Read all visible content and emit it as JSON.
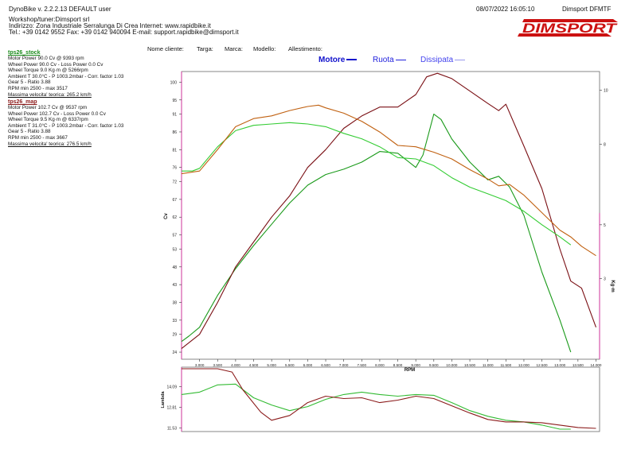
{
  "header": {
    "app_version": "DynoBike v. 2.2.2.13   DEFAULT user",
    "timestamp": "08/07/2022 16:05:10",
    "product": "Dimsport DFMTF",
    "workshop_line1": "Workshop/tuner:Dimsport srl",
    "workshop_line2": "Indirizzo: Zona Industriale Serralunga Di Crea Internet: www.rapidbike.it",
    "workshop_line3": "Tel.: +39 0142 9552 Fax: +39 0142 940094 E-mail: support.rapidbike@dimsport.it",
    "logo_text": "DIMSPORT"
  },
  "fields": {
    "client": "Nome cliente:",
    "plate": "Targa:",
    "brand": "Marca:",
    "model": "Modello:",
    "setup": "Allestimento:"
  },
  "legend": {
    "motore": "Motore",
    "ruota": "Ruota",
    "dissipata": "Dissipata"
  },
  "runs": [
    {
      "name": "tps26_stock",
      "color": "#1a8a1a",
      "lines": [
        "Motor Power 90.0 Cv  @ 9393 rpm",
        "Wheel Power 90.0 Cv  - Loss Power 0.0 Cv",
        "Wheel Torque 9.0 Kg·m  @ 5266rpm",
        "Ambient T 30.0°C - P 1003.2mbar - Corr. factor 1.03",
        "Gear 5 - Ratio 3.88",
        "RPM min 2500 - max 3517"
      ],
      "speed": "Massima velocita' teorica: 265.2 km/h"
    },
    {
      "name": "tps26_map",
      "color": "#8b1a1a",
      "lines": [
        "Motor Power 102.7 Cv  @ 9537 rpm",
        "Wheel Power 102.7 Cv  - Loss Power 0.0 Cv",
        "Wheel Torque 9.5 Kg·m  @ 6337rpm",
        "Ambient T 31.0°C - P 1003.2mbar - Corr. factor 1.03",
        "Gear 5 - Ratio 3.88",
        "RPM min 2500 - max 3667"
      ],
      "speed": "Massima velocita' teorica: 276.5 km/h"
    }
  ],
  "colors": {
    "stock_power": "#1a9a1a",
    "stock_torque": "#33cc33",
    "map_power": "#7a0f14",
    "map_torque": "#c06010",
    "legend_blue": "#1111cc",
    "axis_pink": "#cc3399"
  },
  "chart_data": [
    {
      "type": "line",
      "title": "",
      "xlabel": "RPM",
      "ylabel": "Cv",
      "y2label": "Kg·m",
      "xlim": [
        2500,
        14100
      ],
      "ylim": [
        22,
        103
      ],
      "y2lim": [
        0,
        10.7
      ],
      "x_ticks": [
        3000,
        3500,
        4000,
        4500,
        5000,
        5500,
        6000,
        6500,
        7000,
        7500,
        8000,
        8500,
        9000,
        9500,
        10000,
        10500,
        11000,
        11500,
        12000,
        12500,
        13000,
        13500,
        14000
      ],
      "x_tick_labels": [
        "3.000",
        "3.500",
        "4.000",
        "4.500",
        "5.000",
        "5.500",
        "6.000",
        "6.500",
        "7.000",
        "7.500",
        "8.000",
        "8.500",
        "9.000",
        "9.500",
        "10.000",
        "10.500",
        "11.000",
        "11.500",
        "12.000",
        "12.500",
        "13.000",
        "13.500",
        "14.000"
      ],
      "y_ticks": [
        24,
        29,
        33,
        38,
        43,
        48,
        53,
        57,
        62,
        67,
        72,
        76,
        81,
        86,
        91,
        95,
        100
      ],
      "y2_ticks": [
        3,
        5,
        8,
        10
      ],
      "grid": false,
      "series": [
        {
          "name": "tps26_stock",
          "quantity": "power",
          "axis": "left",
          "color": "#1a9a1a",
          "points": [
            [
              2500,
              27
            ],
            [
              2700,
              28.5
            ],
            [
              3000,
              31
            ],
            [
              3500,
              40
            ],
            [
              4000,
              47.5
            ],
            [
              4500,
              54
            ],
            [
              5000,
              60
            ],
            [
              5500,
              66
            ],
            [
              6000,
              71
            ],
            [
              6500,
              74
            ],
            [
              7000,
              75.5
            ],
            [
              7500,
              77.5
            ],
            [
              8000,
              80.5
            ],
            [
              8500,
              80
            ],
            [
              9000,
              76
            ],
            [
              9200,
              79.5
            ],
            [
              9500,
              91
            ],
            [
              9700,
              89.5
            ],
            [
              10000,
              84
            ],
            [
              10500,
              77.5
            ],
            [
              11000,
              72.5
            ],
            [
              11300,
              73.5
            ],
            [
              11600,
              70.5
            ],
            [
              12000,
              62.5
            ],
            [
              12500,
              46.5
            ],
            [
              13000,
              33
            ],
            [
              13300,
              24
            ]
          ]
        },
        {
          "name": "tps26_map",
          "quantity": "power",
          "axis": "left",
          "color": "#7a0f14",
          "points": [
            [
              2500,
              25
            ],
            [
              3000,
              29
            ],
            [
              3500,
              38
            ],
            [
              4000,
              48
            ],
            [
              4500,
              55
            ],
            [
              5000,
              62
            ],
            [
              5500,
              68
            ],
            [
              6000,
              76
            ],
            [
              6500,
              81
            ],
            [
              7000,
              87
            ],
            [
              7500,
              90.5
            ],
            [
              8000,
              93
            ],
            [
              8500,
              93
            ],
            [
              9000,
              96.5
            ],
            [
              9300,
              101.5
            ],
            [
              9600,
              102.5
            ],
            [
              10000,
              101
            ],
            [
              10500,
              97.5
            ],
            [
              11000,
              94
            ],
            [
              11300,
              92
            ],
            [
              11500,
              93.8
            ],
            [
              12000,
              82
            ],
            [
              12500,
              70
            ],
            [
              13000,
              53
            ],
            [
              13300,
              44
            ],
            [
              13600,
              42
            ],
            [
              14000,
              31
            ]
          ]
        },
        {
          "name": "tps26_stock",
          "quantity": "torque",
          "axis": "right",
          "color": "#33cc33",
          "points": [
            [
              2500,
              7.0
            ],
            [
              2800,
              7.0
            ],
            [
              3000,
              7.1
            ],
            [
              3500,
              7.9
            ],
            [
              4000,
              8.5
            ],
            [
              4500,
              8.7
            ],
            [
              5000,
              8.75
            ],
            [
              5500,
              8.8
            ],
            [
              6000,
              8.75
            ],
            [
              6500,
              8.65
            ],
            [
              7000,
              8.4
            ],
            [
              7500,
              8.2
            ],
            [
              8000,
              7.9
            ],
            [
              8500,
              7.5
            ],
            [
              9000,
              7.45
            ],
            [
              9500,
              7.2
            ],
            [
              10000,
              6.75
            ],
            [
              10500,
              6.4
            ],
            [
              11000,
              6.15
            ],
            [
              11500,
              5.9
            ],
            [
              12000,
              5.5
            ],
            [
              12500,
              5.0
            ],
            [
              13000,
              4.55
            ],
            [
              13300,
              4.25
            ]
          ]
        },
        {
          "name": "tps26_map",
          "quantity": "torque",
          "axis": "right",
          "color": "#c06010",
          "points": [
            [
              2500,
              6.9
            ],
            [
              3000,
              7.0
            ],
            [
              3500,
              7.8
            ],
            [
              4000,
              8.65
            ],
            [
              4500,
              8.95
            ],
            [
              5000,
              9.05
            ],
            [
              5500,
              9.25
            ],
            [
              6000,
              9.4
            ],
            [
              6300,
              9.45
            ],
            [
              6500,
              9.35
            ],
            [
              7000,
              9.15
            ],
            [
              7500,
              8.85
            ],
            [
              8000,
              8.45
            ],
            [
              8500,
              7.95
            ],
            [
              9000,
              7.9
            ],
            [
              9500,
              7.7
            ],
            [
              10000,
              7.45
            ],
            [
              10500,
              7.05
            ],
            [
              11000,
              6.7
            ],
            [
              11300,
              6.45
            ],
            [
              11600,
              6.5
            ],
            [
              12000,
              6.1
            ],
            [
              12500,
              5.45
            ],
            [
              13000,
              4.8
            ],
            [
              13300,
              4.55
            ],
            [
              13600,
              4.2
            ],
            [
              14000,
              3.85
            ]
          ]
        }
      ]
    },
    {
      "type": "line",
      "title": "",
      "ylabel": "Lambda",
      "xlim": [
        2500,
        14100
      ],
      "ylim": [
        11.3,
        15.3
      ],
      "y_ticks": [
        11.53,
        12.81,
        14.09
      ],
      "y_tick_labels": [
        "11.53",
        "12.81",
        "14.09"
      ],
      "grid": false,
      "series": [
        {
          "name": "tps26_stock",
          "quantity": "lambda",
          "color": "#33bb33",
          "points": [
            [
              2500,
              13.6
            ],
            [
              3000,
              13.75
            ],
            [
              3500,
              14.2
            ],
            [
              4000,
              14.25
            ],
            [
              4500,
              13.4
            ],
            [
              5000,
              12.95
            ],
            [
              5500,
              12.6
            ],
            [
              6000,
              12.85
            ],
            [
              6500,
              13.3
            ],
            [
              7000,
              13.6
            ],
            [
              7500,
              13.75
            ],
            [
              8000,
              13.6
            ],
            [
              8500,
              13.5
            ],
            [
              9000,
              13.6
            ],
            [
              9500,
              13.55
            ],
            [
              10000,
              13.1
            ],
            [
              10500,
              12.6
            ],
            [
              11000,
              12.25
            ],
            [
              11500,
              12.0
            ],
            [
              12000,
              11.9
            ],
            [
              12500,
              11.7
            ],
            [
              13000,
              11.45
            ],
            [
              13300,
              11.45
            ]
          ]
        },
        {
          "name": "tps26_map",
          "quantity": "lambda",
          "color": "#8b1a1a",
          "points": [
            [
              2500,
              15.2
            ],
            [
              3500,
              15.2
            ],
            [
              3900,
              15.0
            ],
            [
              4200,
              13.9
            ],
            [
              4700,
              12.5
            ],
            [
              5000,
              12.0
            ],
            [
              5500,
              12.3
            ],
            [
              6000,
              13.1
            ],
            [
              6500,
              13.5
            ],
            [
              7000,
              13.35
            ],
            [
              7500,
              13.4
            ],
            [
              8000,
              13.1
            ],
            [
              8500,
              13.25
            ],
            [
              9000,
              13.5
            ],
            [
              9500,
              13.35
            ],
            [
              10000,
              12.9
            ],
            [
              10500,
              12.45
            ],
            [
              11000,
              12.05
            ],
            [
              11500,
              11.9
            ],
            [
              12000,
              11.9
            ],
            [
              12500,
              11.85
            ],
            [
              13000,
              11.7
            ],
            [
              13500,
              11.55
            ],
            [
              14000,
              11.5
            ]
          ]
        }
      ]
    }
  ]
}
